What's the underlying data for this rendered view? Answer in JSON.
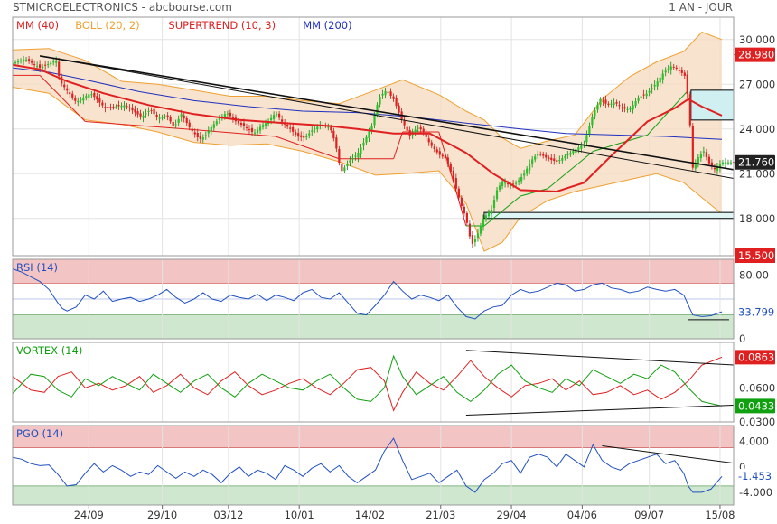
{
  "header": {
    "title": "STMICROELECTRONICS - abcbourse.com",
    "period": "1 AN - JOUR"
  },
  "colors": {
    "red": "#e02020",
    "boll": "#f0a030",
    "supertrend": "#e02020",
    "mm200": "#2030c0",
    "rsi": "#2050c0",
    "vortex_pos": "#10a010",
    "vortex_neg": "#e02020",
    "pgo": "#2050c0",
    "zone_red": "#f3c4c4",
    "zone_green": "#cfe7cf",
    "band_fill": "#f5dcc2"
  },
  "chart_data": [
    {
      "type": "line",
      "name": "price",
      "legend": [
        {
          "label": "MM (40)",
          "color": "#e02020"
        },
        {
          "label": "BOLL (20, 2)",
          "color": "#f0a030"
        },
        {
          "label": "SUPERTREND (10, 3)",
          "color": "#e02020"
        },
        {
          "label": "MM (200)",
          "color": "#2030c0"
        }
      ],
      "ylim": [
        15.5,
        31.5
      ],
      "yticks": [
        "30.000",
        "27.000",
        "24.000",
        "21.000",
        "18.000",
        "15.500"
      ],
      "ytick_values": [
        30,
        27,
        24,
        21,
        18,
        15.5
      ],
      "last_value": "28.980",
      "current_value": "21.760",
      "candle_anchor_times": [
        0,
        14,
        30,
        48,
        52,
        70,
        86,
        102,
        124,
        142,
        152,
        160,
        170,
        178,
        186,
        196,
        206,
        212,
        220,
        228,
        236,
        248,
        258,
        266,
        274,
        282,
        290,
        298,
        306,
        314,
        322,
        330,
        340,
        350,
        356,
        362,
        372,
        380,
        388,
        396,
        404,
        412,
        420,
        430,
        438,
        446,
        452,
        460,
        470,
        478,
        486,
        494,
        500,
        506,
        512,
        518,
        522,
        528,
        534,
        540,
        548,
        556,
        564,
        572,
        580,
        590,
        600,
        610,
        620,
        630,
        640,
        648,
        656,
        664,
        672,
        680,
        690,
        700,
        710,
        718,
        726,
        734,
        742,
        746,
        750,
        756,
        762,
        768,
        774,
        782
      ],
      "candle_anchor_values": [
        28.4,
        28.7,
        28.1,
        28.6,
        27.2,
        25.8,
        26.4,
        25.4,
        25.6,
        24.8,
        25.3,
        24.7,
        24.9,
        24.1,
        25.0,
        24.0,
        23.3,
        23.5,
        24.2,
        24.7,
        25.1,
        24.4,
        24.1,
        23.7,
        24.2,
        24.5,
        25.1,
        24.4,
        24.0,
        23.5,
        23.4,
        23.9,
        24.3,
        24.1,
        23.0,
        21.1,
        21.9,
        22.3,
        23.2,
        24.2,
        26.1,
        26.6,
        26.0,
        24.5,
        23.5,
        24.1,
        23.9,
        23.0,
        22.3,
        22.0,
        20.6,
        19.0,
        18.0,
        16.2,
        16.8,
        17.9,
        18.2,
        18.6,
        19.9,
        20.5,
        20.2,
        20.4,
        21.0,
        21.9,
        22.4,
        22.0,
        21.8,
        22.2,
        22.6,
        23.0,
        25.0,
        26.0,
        25.6,
        25.8,
        25.4,
        25.3,
        26.1,
        26.4,
        27.1,
        27.8,
        28.2,
        28.0,
        27.5,
        25.2,
        21.4,
        22.1,
        22.5,
        21.7,
        21.3,
        21.76
      ],
      "mm40_times": [
        0,
        30,
        60,
        100,
        150,
        200,
        250,
        300,
        350,
        380,
        420,
        460,
        500,
        530,
        560,
        600,
        630,
        660,
        700,
        730,
        745,
        760,
        782
      ],
      "mm40_values": [
        28.3,
        28.0,
        27.2,
        26.4,
        25.6,
        25.0,
        24.6,
        24.4,
        24.2,
        24.0,
        23.7,
        23.7,
        22.4,
        21.0,
        19.9,
        19.8,
        20.4,
        22.2,
        24.5,
        25.4,
        26.0,
        25.5,
        24.9
      ],
      "mm200_times": [
        0,
        40,
        80,
        140,
        200,
        260,
        320,
        380,
        440,
        500,
        560,
        610,
        660,
        720,
        782
      ],
      "mm200_values": [
        28.1,
        27.8,
        27.3,
        26.5,
        25.9,
        25.5,
        25.2,
        25.1,
        24.8,
        24.4,
        24.0,
        23.7,
        23.6,
        23.5,
        23.3
      ],
      "boll_upper_times": [
        0,
        40,
        80,
        120,
        160,
        200,
        240,
        280,
        320,
        360,
        400,
        430,
        470,
        500,
        520,
        540,
        560,
        590,
        620,
        650,
        680,
        710,
        740,
        760,
        782
      ],
      "boll_upper_values": [
        29.3,
        29.4,
        28.6,
        27.2,
        27.0,
        26.6,
        26.2,
        26.2,
        25.9,
        25.7,
        26.6,
        27.3,
        26.3,
        25.2,
        24.6,
        23.4,
        22.7,
        23.2,
        23.6,
        26.0,
        27.5,
        28.5,
        29.2,
        30.5,
        30.0
      ],
      "boll_lower_times": [
        0,
        40,
        80,
        120,
        160,
        200,
        240,
        280,
        320,
        360,
        400,
        430,
        470,
        500,
        520,
        540,
        560,
        590,
        620,
        650,
        680,
        710,
        740,
        760,
        782
      ],
      "boll_lower_values": [
        26.8,
        26.4,
        24.6,
        24.3,
        23.8,
        23.1,
        22.9,
        23.0,
        22.5,
        21.8,
        20.9,
        21.0,
        21.2,
        19.0,
        15.8,
        16.4,
        18.1,
        19.2,
        19.8,
        20.2,
        20.6,
        21.0,
        20.4,
        19.4,
        18.3
      ],
      "supertrend_times": [
        0,
        30,
        80,
        190,
        290,
        360,
        420,
        430,
        470,
        500,
        520,
        560,
        590,
        640,
        700,
        745
      ],
      "supertrend_values": [
        27.6,
        27.6,
        24.5,
        24.0,
        23.5,
        22.0,
        22.0,
        23.8,
        23.8,
        17.5,
        17.5,
        19.5,
        20.0,
        22.5,
        23.6,
        26.6
      ],
      "trendlines": [
        {
          "from_time": 30,
          "from_value": 28.9,
          "to_time": 812,
          "to_value": 21.1
        },
        {
          "from_time": 30,
          "from_value": 28.9,
          "to_time": 812,
          "to_value": 20.5
        }
      ],
      "zones": [
        {
          "from_time": 748,
          "to_time": 812,
          "from_value": 24.6,
          "to_value": 26.6
        },
        {
          "from_time": 520,
          "to_time": 812,
          "from_value": 18.0,
          "to_value": 18.4
        }
      ]
    },
    {
      "type": "line",
      "name": "rsi",
      "legend": [
        {
          "label": "RSI (14)",
          "color": "#2050c0"
        }
      ],
      "ylim": [
        0,
        100
      ],
      "yticks": [
        "80.00",
        "0"
      ],
      "ytick_values": [
        80,
        0
      ],
      "band": {
        "upper": 70,
        "lower": 30,
        "mid": 50
      },
      "current_value": "33.799",
      "times": [
        0,
        10,
        20,
        30,
        40,
        50,
        55,
        60,
        70,
        80,
        90,
        100,
        110,
        120,
        130,
        140,
        150,
        160,
        170,
        180,
        190,
        200,
        210,
        220,
        230,
        240,
        250,
        260,
        270,
        280,
        290,
        300,
        310,
        320,
        330,
        340,
        350,
        360,
        370,
        380,
        390,
        400,
        410,
        420,
        430,
        440,
        450,
        460,
        470,
        480,
        490,
        500,
        510,
        520,
        530,
        540,
        550,
        560,
        570,
        580,
        590,
        600,
        610,
        620,
        630,
        640,
        650,
        660,
        670,
        680,
        690,
        700,
        710,
        720,
        730,
        740,
        750,
        760,
        770,
        782
      ],
      "values": [
        88,
        84,
        78,
        72,
        62,
        45,
        38,
        35,
        40,
        55,
        50,
        60,
        47,
        50,
        52,
        47,
        50,
        55,
        62,
        52,
        45,
        50,
        58,
        50,
        47,
        55,
        52,
        50,
        56,
        48,
        55,
        52,
        48,
        58,
        62,
        52,
        50,
        58,
        45,
        32,
        30,
        42,
        55,
        72,
        60,
        50,
        55,
        52,
        48,
        55,
        40,
        28,
        25,
        35,
        40,
        42,
        55,
        62,
        58,
        60,
        65,
        70,
        68,
        60,
        62,
        68,
        70,
        64,
        62,
        58,
        60,
        65,
        62,
        60,
        62,
        55,
        30,
        28,
        29,
        34
      ],
      "support": {
        "from_time": 745,
        "to_time": 790,
        "value": 24
      }
    },
    {
      "type": "line",
      "name": "vortex",
      "legend": [
        {
          "label": "VORTEX (14)",
          "color": "#10a010"
        }
      ],
      "ylim": [
        0.03,
        0.1
      ],
      "yticks": [
        "0.0600",
        "0.0300"
      ],
      "ytick_values": [
        0.06,
        0.03
      ],
      "current_values": [
        "0.0863",
        "0.0433"
      ],
      "green_times": [
        0,
        20,
        35,
        50,
        65,
        80,
        95,
        110,
        125,
        140,
        155,
        170,
        185,
        200,
        215,
        230,
        245,
        260,
        275,
        290,
        305,
        320,
        335,
        350,
        365,
        380,
        395,
        410,
        420,
        430,
        445,
        460,
        475,
        490,
        505,
        520,
        535,
        550,
        565,
        580,
        595,
        610,
        625,
        640,
        655,
        670,
        685,
        700,
        715,
        730,
        745,
        760,
        782
      ],
      "green_values": [
        0.055,
        0.072,
        0.07,
        0.058,
        0.052,
        0.068,
        0.062,
        0.07,
        0.064,
        0.058,
        0.072,
        0.064,
        0.056,
        0.066,
        0.072,
        0.06,
        0.052,
        0.064,
        0.072,
        0.066,
        0.06,
        0.058,
        0.066,
        0.072,
        0.06,
        0.05,
        0.048,
        0.06,
        0.088,
        0.07,
        0.054,
        0.062,
        0.07,
        0.056,
        0.048,
        0.058,
        0.072,
        0.08,
        0.066,
        0.06,
        0.056,
        0.068,
        0.062,
        0.076,
        0.07,
        0.064,
        0.072,
        0.068,
        0.08,
        0.074,
        0.06,
        0.048,
        0.044
      ],
      "red_times": [
        0,
        20,
        35,
        50,
        65,
        80,
        95,
        110,
        125,
        140,
        155,
        170,
        185,
        200,
        215,
        230,
        245,
        260,
        275,
        290,
        305,
        320,
        335,
        350,
        365,
        380,
        395,
        410,
        420,
        430,
        445,
        460,
        475,
        490,
        505,
        520,
        535,
        550,
        565,
        580,
        595,
        610,
        625,
        640,
        655,
        670,
        685,
        700,
        715,
        730,
        745,
        760,
        782
      ],
      "red_values": [
        0.07,
        0.058,
        0.056,
        0.07,
        0.074,
        0.06,
        0.064,
        0.058,
        0.062,
        0.07,
        0.056,
        0.062,
        0.072,
        0.06,
        0.054,
        0.066,
        0.074,
        0.062,
        0.054,
        0.058,
        0.064,
        0.068,
        0.06,
        0.054,
        0.064,
        0.076,
        0.078,
        0.066,
        0.04,
        0.056,
        0.074,
        0.064,
        0.058,
        0.07,
        0.084,
        0.07,
        0.06,
        0.052,
        0.062,
        0.064,
        0.068,
        0.058,
        0.066,
        0.054,
        0.056,
        0.062,
        0.054,
        0.058,
        0.05,
        0.056,
        0.066,
        0.08,
        0.087
      ],
      "trendlines": [
        {
          "from_time": 500,
          "from_value": 0.093,
          "to_time": 798,
          "to_value": 0.08
        },
        {
          "from_time": 500,
          "from_value": 0.036,
          "to_time": 803,
          "to_value": 0.045
        }
      ]
    },
    {
      "type": "line",
      "name": "pgo",
      "legend": [
        {
          "label": "PGO (14)",
          "color": "#2050c0"
        }
      ],
      "ylim": [
        -6,
        6.5
      ],
      "yticks": [
        "4.000",
        "0",
        "-4.000"
      ],
      "ytick_values": [
        4,
        0,
        -4
      ],
      "band": {
        "upper": 3,
        "lower": -3
      },
      "current_value": "-1.453",
      "times": [
        0,
        10,
        20,
        30,
        40,
        50,
        60,
        70,
        80,
        90,
        100,
        110,
        120,
        130,
        140,
        150,
        160,
        170,
        180,
        190,
        200,
        210,
        220,
        230,
        240,
        250,
        260,
        270,
        280,
        290,
        300,
        310,
        320,
        330,
        340,
        350,
        360,
        370,
        380,
        390,
        400,
        410,
        420,
        430,
        440,
        450,
        460,
        470,
        480,
        490,
        500,
        510,
        520,
        530,
        540,
        550,
        560,
        570,
        580,
        590,
        600,
        610,
        620,
        630,
        640,
        650,
        660,
        670,
        680,
        690,
        700,
        710,
        720,
        730,
        740,
        745,
        750,
        760,
        770,
        782
      ],
      "values": [
        1.5,
        1.2,
        0.5,
        0.2,
        0.3,
        -1.2,
        -3.0,
        -2.8,
        -1.0,
        0.5,
        -0.8,
        0.2,
        -0.5,
        -1.5,
        -0.8,
        -1.2,
        0.2,
        -0.8,
        -1.8,
        -0.8,
        -1.5,
        -0.5,
        -1.2,
        -2.5,
        -1.0,
        0.0,
        -1.5,
        -0.5,
        -1.0,
        -2.0,
        0.2,
        -0.5,
        -1.5,
        -0.2,
        0.5,
        -0.8,
        0.2,
        -1.5,
        -2.5,
        -1.5,
        -0.5,
        2.5,
        4.5,
        1.0,
        -2.0,
        -1.5,
        -1.0,
        -2.5,
        -1.5,
        -0.5,
        -3.0,
        -4.0,
        -2.0,
        -1.0,
        0.5,
        1.0,
        -1.0,
        1.5,
        2.0,
        1.5,
        0.0,
        2.0,
        1.0,
        0.0,
        3.5,
        1.0,
        0.0,
        -0.5,
        0.5,
        1.0,
        1.5,
        2.0,
        0.5,
        1.0,
        -1.0,
        -3.0,
        -4.0,
        -4.0,
        -3.5,
        -1.5
      ],
      "trendline": {
        "from_time": 650,
        "from_value": 3.3,
        "to_time": 810,
        "to_value": 0.3
      }
    }
  ],
  "xaxis": {
    "labels": [
      "24/09",
      "29/10",
      "03/12",
      "10/01",
      "14/02",
      "21/03",
      "29/04",
      "04/06",
      "09/07",
      "15/08"
    ],
    "times": [
      84,
      165,
      238,
      316,
      394,
      472,
      550,
      628,
      702,
      780
    ],
    "tmax": 795
  }
}
